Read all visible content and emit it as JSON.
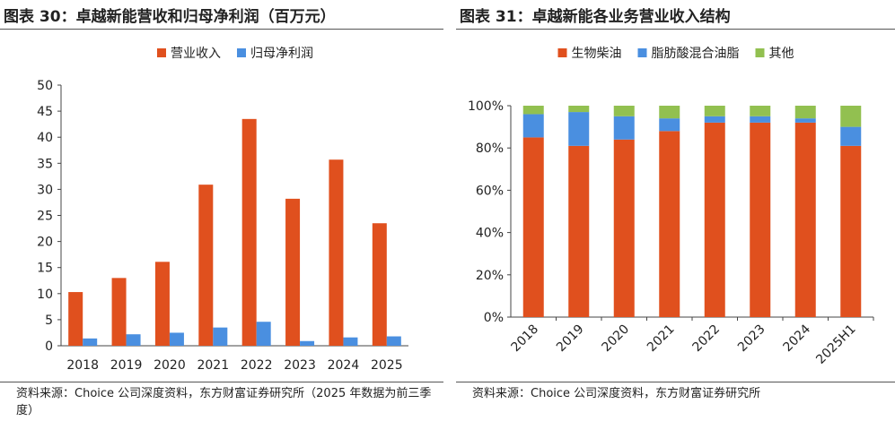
{
  "figures": {
    "left": {
      "title": "图表 30：卓越新能营收和归母净利润（百万元）",
      "source": "资料来源：Choice 公司深度资料，东方财富证券研究所（2025 年数据为前三季度）"
    },
    "right": {
      "title": "图表 31：卓越新能各业务营业收入结构",
      "source": "资料来源：Choice 公司深度资料，东方财富证券研究所"
    }
  },
  "chart_data": [
    {
      "type": "bar",
      "categories": [
        "2018",
        "2019",
        "2020",
        "2021",
        "2022",
        "2023",
        "2024",
        "2025"
      ],
      "series": [
        {
          "name": "营业收入",
          "color": "#E0501E",
          "values": [
            10.3,
            13.0,
            16.1,
            30.9,
            43.5,
            28.2,
            35.7,
            23.5
          ]
        },
        {
          "name": "归母净利润",
          "color": "#4A8FE0",
          "values": [
            1.4,
            2.2,
            2.5,
            3.5,
            4.6,
            0.9,
            1.6,
            1.8
          ]
        }
      ],
      "ylim": [
        0,
        50
      ],
      "yticks": [
        0,
        5,
        10,
        15,
        20,
        25,
        30,
        35,
        40,
        45,
        50
      ],
      "legend": "top-center",
      "grid": false
    },
    {
      "type": "bar",
      "stacked": true,
      "percent": true,
      "categories": [
        "2018",
        "2019",
        "2020",
        "2021",
        "2022",
        "2023",
        "2024",
        "2025H1"
      ],
      "series": [
        {
          "name": "生物柴油",
          "color": "#E0501E",
          "values": [
            85,
            81,
            84,
            88,
            92,
            92,
            92,
            81
          ]
        },
        {
          "name": "脂肪酸混合油脂",
          "color": "#4A8FE0",
          "values": [
            11,
            16,
            11,
            6,
            3,
            3,
            2,
            9
          ]
        },
        {
          "name": "其他",
          "color": "#92C050",
          "values": [
            4,
            3,
            5,
            6,
            5,
            5,
            6,
            10
          ]
        }
      ],
      "ylim": [
        0,
        100
      ],
      "yticks": [
        "0%",
        "20%",
        "40%",
        "60%",
        "80%",
        "100%"
      ],
      "legend": "top-center",
      "grid": false
    }
  ]
}
